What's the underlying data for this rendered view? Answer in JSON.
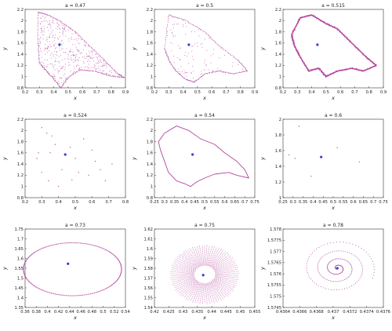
{
  "colors": {
    "attractor": "#b5479e",
    "fixed_point": "#3a3fd0",
    "axes": "#333333"
  },
  "chart_data": [
    {
      "type": "scatter",
      "title": "a = 0.47",
      "xlabel": "x",
      "ylabel": "y",
      "xlim": [
        0.2,
        0.9
      ],
      "ylim": [
        0.8,
        2.2
      ],
      "xticks": [
        "0.2",
        "0.3",
        "0.4",
        "0.5",
        "0.6",
        "0.7",
        "0.8",
        "0.9"
      ],
      "yticks": [
        "0.8",
        "1",
        "1.2",
        "1.4",
        "1.6",
        "1.8",
        "2",
        "2.2"
      ],
      "pattern": "filled",
      "fixed_point": [
        0.44,
        1.57
      ],
      "outline": [
        [
          0.29,
          2.15
        ],
        [
          0.36,
          2.1
        ],
        [
          0.45,
          1.98
        ],
        [
          0.55,
          1.8
        ],
        [
          0.65,
          1.55
        ],
        [
          0.75,
          1.3
        ],
        [
          0.85,
          1.05
        ],
        [
          0.89,
          0.98
        ],
        [
          0.78,
          1.02
        ],
        [
          0.68,
          1.1
        ],
        [
          0.58,
          1.12
        ],
        [
          0.5,
          0.98
        ],
        [
          0.45,
          0.8
        ],
        [
          0.4,
          0.96
        ],
        [
          0.34,
          1.12
        ],
        [
          0.3,
          1.25
        ],
        [
          0.29,
          1.6
        ]
      ]
    },
    {
      "type": "scatter",
      "title": "a = 0.5",
      "xlabel": "x",
      "ylabel": "y",
      "xlim": [
        0.2,
        0.9
      ],
      "ylim": [
        0.8,
        2.2
      ],
      "xticks": [
        "0.2",
        "0.3",
        "0.4",
        "0.5",
        "0.6",
        "0.7",
        "0.8",
        "0.9"
      ],
      "yticks": [
        "0.8",
        "1",
        "1.2",
        "1.4",
        "1.6",
        "1.8",
        "2",
        "2.2"
      ],
      "pattern": "bands",
      "fixed_point": [
        0.44,
        1.57
      ],
      "outline": [
        [
          0.3,
          2.1
        ],
        [
          0.42,
          2.0
        ],
        [
          0.55,
          1.8
        ],
        [
          0.65,
          1.55
        ],
        [
          0.78,
          1.3
        ],
        [
          0.85,
          1.1
        ],
        [
          0.75,
          1.05
        ],
        [
          0.65,
          1.1
        ],
        [
          0.55,
          1.05
        ],
        [
          0.48,
          0.9
        ],
        [
          0.42,
          0.95
        ],
        [
          0.35,
          1.1
        ],
        [
          0.3,
          1.3
        ],
        [
          0.27,
          1.5
        ]
      ]
    },
    {
      "type": "scatter",
      "title": "a = 0.515",
      "xlabel": "x",
      "ylabel": "y",
      "xlim": [
        0.2,
        0.9
      ],
      "ylim": [
        0.8,
        2.2
      ],
      "xticks": [
        "0.2",
        "0.3",
        "0.4",
        "0.5",
        "0.6",
        "0.7",
        "0.8",
        "0.9"
      ],
      "yticks": [
        "0.8",
        "1",
        "1.2",
        "1.4",
        "1.6",
        "1.8",
        "2",
        "2.2"
      ],
      "pattern": "ring",
      "fixed_point": [
        0.44,
        1.57
      ],
      "outline": [
        [
          0.32,
          2.05
        ],
        [
          0.4,
          2.1
        ],
        [
          0.5,
          1.95
        ],
        [
          0.58,
          1.85
        ],
        [
          0.68,
          1.6
        ],
        [
          0.78,
          1.35
        ],
        [
          0.85,
          1.2
        ],
        [
          0.76,
          1.1
        ],
        [
          0.68,
          1.15
        ],
        [
          0.58,
          1.1
        ],
        [
          0.5,
          1.0
        ],
        [
          0.45,
          1.15
        ],
        [
          0.38,
          1.1
        ],
        [
          0.32,
          1.35
        ],
        [
          0.28,
          1.55
        ],
        [
          0.26,
          1.75
        ]
      ]
    },
    {
      "type": "scatter",
      "title": "a = 0.524",
      "xlabel": "x",
      "ylabel": "y",
      "xlim": [
        0.2,
        0.8
      ],
      "ylim": [
        0.8,
        2.2
      ],
      "xticks": [
        "0.2",
        "0.3",
        "0.4",
        "0.5",
        "0.6",
        "0.7",
        "0.8"
      ],
      "yticks": [
        "0.8",
        "1",
        "1.2",
        "1.4",
        "1.6",
        "1.8",
        "2",
        "2.2"
      ],
      "pattern": "points",
      "fixed_point": [
        0.44,
        1.57
      ],
      "points": [
        [
          0.3,
          2.05
        ],
        [
          0.33,
          1.95
        ],
        [
          0.36,
          1.9
        ],
        [
          0.28,
          1.6
        ],
        [
          0.27,
          1.5
        ],
        [
          0.3,
          1.25
        ],
        [
          0.34,
          1.1
        ],
        [
          0.4,
          1.0
        ],
        [
          0.48,
          1.12
        ],
        [
          0.52,
          1.25
        ],
        [
          0.58,
          1.2
        ],
        [
          0.62,
          1.45
        ],
        [
          0.65,
          1.3
        ],
        [
          0.55,
          1.85
        ],
        [
          0.47,
          1.7
        ],
        [
          0.68,
          1.1
        ],
        [
          0.72,
          1.4
        ],
        [
          0.38,
          1.75
        ],
        [
          0.5,
          1.5
        ],
        [
          0.6,
          1.65
        ],
        [
          0.42,
          1.3
        ],
        [
          0.35,
          1.6
        ]
      ]
    },
    {
      "type": "scatter",
      "title": "a = 0.54",
      "xlabel": "x",
      "ylabel": "y",
      "xlim": [
        0.25,
        0.75
      ],
      "ylim": [
        0.8,
        2.2
      ],
      "xticks": [
        "0.25",
        "0.3",
        "0.35",
        "0.4",
        "0.45",
        "0.5",
        "0.55",
        "0.6",
        "0.65",
        "0.7",
        "0.75"
      ],
      "yticks": [
        "0.8",
        "1",
        "1.2",
        "1.4",
        "1.6",
        "1.8",
        "2",
        "2.2"
      ],
      "pattern": "curve",
      "fixed_point": [
        0.44,
        1.57
      ],
      "outline": [
        [
          0.3,
          1.95
        ],
        [
          0.36,
          2.08
        ],
        [
          0.42,
          2.0
        ],
        [
          0.48,
          1.85
        ],
        [
          0.55,
          1.75
        ],
        [
          0.6,
          1.6
        ],
        [
          0.66,
          1.45
        ],
        [
          0.7,
          1.3
        ],
        [
          0.72,
          1.15
        ],
        [
          0.66,
          1.2
        ],
        [
          0.62,
          1.25
        ],
        [
          0.55,
          1.22
        ],
        [
          0.5,
          1.15
        ],
        [
          0.46,
          1.08
        ],
        [
          0.43,
          1.0
        ],
        [
          0.4,
          1.05
        ],
        [
          0.36,
          1.1
        ],
        [
          0.32,
          1.25
        ],
        [
          0.3,
          1.45
        ],
        [
          0.28,
          1.65
        ],
        [
          0.27,
          1.8
        ]
      ]
    },
    {
      "type": "scatter",
      "title": "a = 0.6",
      "xlabel": "x",
      "ylabel": "y",
      "xlim": [
        0.25,
        0.75
      ],
      "ylim": [
        1.0,
        2.1
      ],
      "xticks": [
        "0.25",
        "0.3",
        "0.35",
        "0.4",
        "0.45",
        "0.5",
        "0.55",
        "0.6",
        "0.65",
        "0.7",
        "0.75"
      ],
      "yticks": [
        "1",
        "1.2",
        "1.4",
        "1.6",
        "1.8",
        "2"
      ],
      "pattern": "points",
      "fixed_point": [
        0.44,
        1.57
      ],
      "points": [
        [
          0.33,
          2.0
        ],
        [
          0.28,
          1.6
        ],
        [
          0.31,
          1.55
        ],
        [
          0.63,
          1.5
        ],
        [
          0.39,
          1.3
        ],
        [
          0.52,
          1.7
        ]
      ]
    },
    {
      "type": "scatter",
      "title": "a = 0.73",
      "xlabel": "x",
      "ylabel": "y",
      "xlim": [
        0.36,
        0.54
      ],
      "ylim": [
        1.35,
        1.75
      ],
      "xticks": [
        "0.36",
        "0.38",
        "0.4",
        "0.42",
        "0.44",
        "0.46",
        "0.48",
        "0.5",
        "0.52",
        "0.54"
      ],
      "yticks": [
        "1.35",
        "1.4",
        "1.45",
        "1.5",
        "1.55",
        "1.6",
        "1.65",
        "1.7",
        "1.75"
      ],
      "pattern": "ellipse",
      "fixed_point": [
        0.437,
        1.573
      ],
      "ellipse": {
        "cx": 0.445,
        "cy": 1.545,
        "rx": 0.088,
        "ry": 0.135,
        "rotation_deg": -30
      }
    },
    {
      "type": "scatter",
      "title": "a = 0.75",
      "xlabel": "x",
      "ylabel": "y",
      "xlim": [
        0.42,
        0.455
      ],
      "ylim": [
        1.54,
        1.62
      ],
      "xticks": [
        "0.42",
        "0.425",
        "0.43",
        "0.435",
        "0.44",
        "0.445",
        "0.45",
        "0.455"
      ],
      "yticks": [
        "1.54",
        "1.55",
        "1.56",
        "1.57",
        "1.58",
        "1.59",
        "1.6",
        "1.61",
        "1.62"
      ],
      "pattern": "spiral",
      "fixed_point": [
        0.437,
        1.573
      ],
      "spiral": {
        "cx": 0.4375,
        "cy": 1.5735,
        "inner": 0.3,
        "outer": 1.0,
        "rx": 0.012,
        "ry": 0.03,
        "rotation_deg": 35,
        "turns": 11
      }
    },
    {
      "type": "scatter",
      "title": "a = 0.78",
      "xlabel": "x",
      "ylabel": "y",
      "xlim": [
        0.4364,
        0.4376
      ],
      "ylim": [
        1.5745,
        1.578
      ],
      "xticks": [
        "0.4364",
        "0.4366",
        "0.4368",
        "0.437",
        "0.4372",
        "0.4374",
        "0.4376"
      ],
      "yticks": [
        "1.5745",
        "1.575",
        "1.5755",
        "1.576",
        "1.5765",
        "1.577",
        "1.5775",
        "1.578"
      ],
      "pattern": "spiral_in",
      "fixed_point": [
        0.43705,
        1.57625
      ],
      "spiral": {
        "cx": 0.43705,
        "cy": 1.57625,
        "inner": 0.0,
        "outer": 1.0,
        "rx": 0.00045,
        "ry": 0.0013,
        "rotation_deg": 25,
        "turns": 4
      }
    }
  ]
}
